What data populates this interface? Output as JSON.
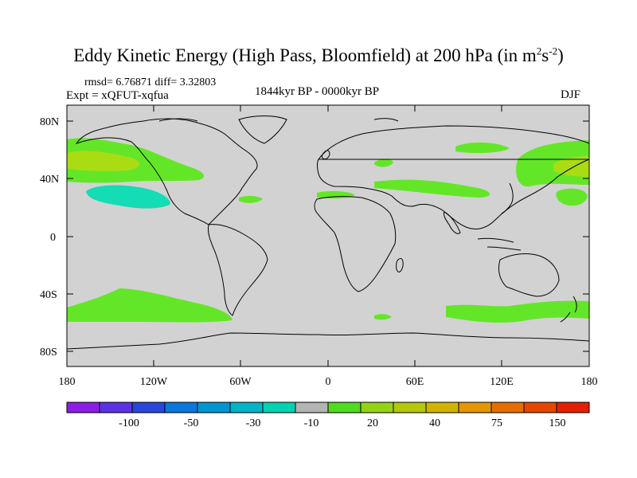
{
  "title": {
    "main": "Eddy Kinetic Energy (High Pass, Bloomfield) at 200 hPa (in m",
    "sup1": "2",
    "mid": "s",
    "sup2": "-2",
    "end": ")"
  },
  "stats": "rmsd= 6.76871 diff= 3.32803",
  "expt": "Expt = xQFUT-xqfua",
  "period": "1844kyr BP - 0000kyr BP",
  "season": "DJF",
  "map": {
    "background_color": "#d2d2d2",
    "coastline_color": "#000000",
    "lat_labels": [
      "80N",
      "40N",
      "0",
      "40S",
      "80S"
    ],
    "lon_labels": [
      "180",
      "120W",
      "60W",
      "0",
      "60E",
      "120E",
      "180"
    ]
  },
  "colorbar": {
    "colors": [
      "#8c1ee6",
      "#5a32e6",
      "#2846dc",
      "#0a78dc",
      "#0096d2",
      "#00b4c8",
      "#00d2b4",
      "#b4b4b4",
      "#50dc1e",
      "#96d214",
      "#b4c80a",
      "#d2b400",
      "#e69600",
      "#e66e00",
      "#e64600",
      "#e61e00"
    ],
    "labels": [
      "-100",
      "-50",
      "-30",
      "-10",
      "20",
      "40",
      "75",
      "150"
    ]
  },
  "legend_colors": {
    "light_green": "#64e628",
    "yellow_green": "#aadc14",
    "teal": "#14dcb4"
  }
}
